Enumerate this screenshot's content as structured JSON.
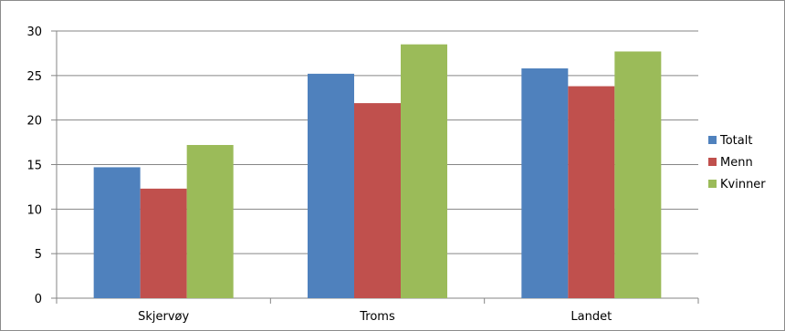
{
  "chart_data": {
    "type": "bar",
    "title": "",
    "xlabel": "",
    "ylabel": "",
    "categories": [
      "Skjervøy",
      "Troms",
      "Landet"
    ],
    "series": [
      {
        "name": "Totalt",
        "color": "#4f81bd",
        "values": [
          14.7,
          25.2,
          25.8
        ]
      },
      {
        "name": "Menn",
        "color": "#c0504d",
        "values": [
          12.3,
          21.9,
          23.8
        ]
      },
      {
        "name": "Kvinner",
        "color": "#9bbb59",
        "values": [
          17.2,
          28.5,
          27.7
        ]
      }
    ],
    "ylim": [
      0,
      30
    ],
    "yticks": [
      "0",
      "5",
      "10",
      "15",
      "20",
      "25",
      "30"
    ],
    "grid": true,
    "legend_position": "right"
  }
}
